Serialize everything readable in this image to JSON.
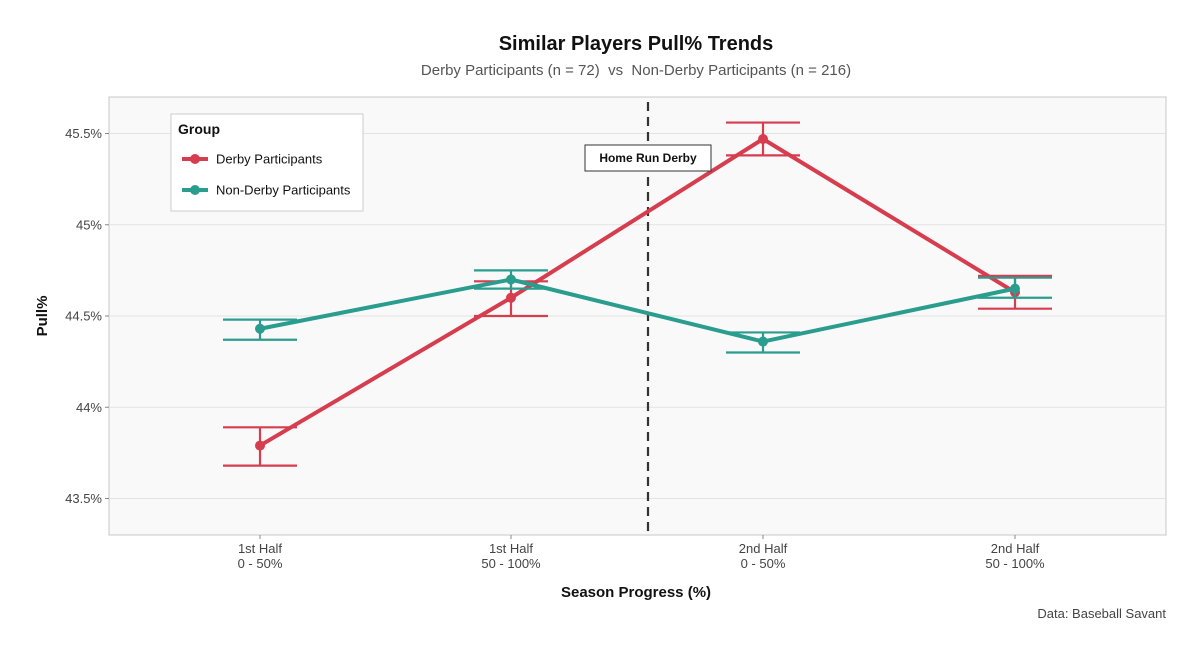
{
  "chart_data": {
    "type": "line",
    "title": "Similar Players Pull% Trends",
    "subtitle": "Derby Participants (n = 72)  vs  Non-Derby Participants (n = 216)",
    "xlabel": "Season Progress (%)",
    "ylabel": "Pull%",
    "caption": "Data: Baseball Savant",
    "categories": [
      {
        "line1": "1st Half",
        "line2": "0 - 50%"
      },
      {
        "line1": "1st Half",
        "line2": "50 - 100%"
      },
      {
        "line1": "2nd Half",
        "line2": "0 - 50%"
      },
      {
        "line1": "2nd Half",
        "line2": "50 - 100%"
      }
    ],
    "ylim": [
      43.3,
      45.7
    ],
    "yticks": [
      {
        "value": 43.5,
        "label": "43.5%"
      },
      {
        "value": 44.0,
        "label": "44%"
      },
      {
        "value": 44.5,
        "label": "44.5%"
      },
      {
        "value": 45.0,
        "label": "45%"
      },
      {
        "value": 45.5,
        "label": "45.5%"
      }
    ],
    "grid": true,
    "legend": {
      "title": "Group",
      "placement": "top-left"
    },
    "series": [
      {
        "name": "Derby Participants",
        "color": "#D63D4E",
        "values": [
          43.79,
          44.6,
          45.47,
          44.63
        ],
        "error_low": [
          43.68,
          44.5,
          45.38,
          44.54
        ],
        "error_high": [
          43.89,
          44.69,
          45.56,
          44.72
        ]
      },
      {
        "name": "Non-Derby Participants",
        "color": "#2A9D8F",
        "values": [
          44.43,
          44.7,
          44.36,
          44.65
        ],
        "error_low": [
          44.37,
          44.65,
          44.3,
          44.6
        ],
        "error_high": [
          44.48,
          44.75,
          44.41,
          44.71
        ]
      }
    ],
    "annotation": {
      "label": "Home Run Derby",
      "x_between": [
        1,
        2
      ],
      "line_style": "dashed"
    }
  }
}
